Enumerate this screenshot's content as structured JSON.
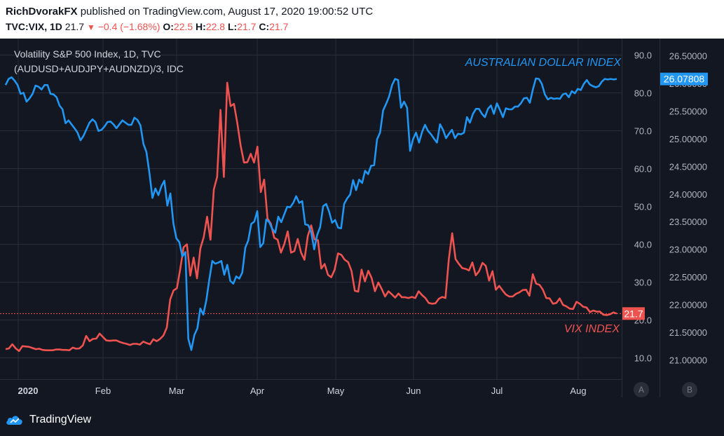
{
  "header": {
    "user": "RichDvorakFX",
    "published": "published on TradingView.com, August 17, 2020 19:00:52 UTC",
    "symbol": "TVC:VIX, 1D",
    "last": "21.7",
    "change": "−0.4 (−1.68%)",
    "open_label": "O:",
    "open": "22.5",
    "high_label": "H:",
    "high": "22.8",
    "low_label": "L:",
    "low": "21.7",
    "close_label": "C:",
    "close": "21.7"
  },
  "legend": {
    "line1": "Volatility S&P 500 Index, 1D, TVC",
    "line2": "(AUDUSD+AUDJPY+AUDNZD)/3, IDC"
  },
  "footer": {
    "brand": "TradingView"
  },
  "pane_buttons": {
    "a": "A",
    "b": "B"
  },
  "colors": {
    "vix": "#ef5350",
    "aud": "#2196f3",
    "background": "#131722",
    "grid": "#2a2e39",
    "axis_text": "#b2b5be"
  },
  "chart_data": {
    "type": "line",
    "x_axis_labels": [
      "2020",
      "Feb",
      "Mar",
      "Apr",
      "May",
      "Jun",
      "Jul",
      "Aug"
    ],
    "annotations": [
      "AUSTRALIAN DOLLAR INDEX",
      "VIX INDEX"
    ],
    "axes": {
      "left": {
        "ticks": [
          "90.0",
          "80.0",
          "70.0",
          "60.0",
          "50.0",
          "40.0",
          "30.0",
          "20.0",
          "10.0"
        ],
        "range": [
          5,
          95
        ]
      },
      "right": {
        "ticks": [
          "26.50000",
          "26.00000",
          "25.50000",
          "25.00000",
          "24.50000",
          "24.00000",
          "23.50000",
          "23.00000",
          "22.50000",
          "22.00000",
          "21.50000",
          "21.00000"
        ],
        "range": [
          20.6,
          26.85
        ]
      }
    },
    "last_value_labels": {
      "vix": "21.7",
      "aud": "26.07808"
    },
    "grid": true,
    "series": [
      {
        "key": "vix",
        "axis": "left",
        "values": [
          12.3,
          12.5,
          13.6,
          12.5,
          11.8,
          13.1,
          13.0,
          12.9,
          12.6,
          12.3,
          12.4,
          12.1,
          12.0,
          12.0,
          12.0,
          12.2,
          12.2,
          12.1,
          12.1,
          12.0,
          12.7,
          12.4,
          12.5,
          13.3,
          15.8,
          14.4,
          15.0,
          15.1,
          16.4,
          15.5,
          14.6,
          14.5,
          14.6,
          14.6,
          14.2,
          13.9,
          13.7,
          13.4,
          13.7,
          13.7,
          13.5,
          14.3,
          13.9,
          13.6,
          14.9,
          14.4,
          15.0,
          15.9,
          18.0,
          25.4,
          27.8,
          28.4,
          33.4,
          39.2,
          40.0,
          31.7,
          36.5,
          31.0,
          38.9,
          41.9,
          47.3,
          41.2,
          54.5,
          57.8,
          75.5,
          57.8,
          82.7,
          76.5,
          77.1,
          72.0,
          66.0,
          61.6,
          61.7,
          63.9,
          61.6,
          65.8,
          53.8,
          57.1,
          46.8,
          45.4,
          41.7,
          41.2,
          37.8,
          40.1,
          43.4,
          37.8,
          38.2,
          41.4,
          37.8,
          35.9,
          42.2,
          45.0,
          41.3,
          41.1,
          33.6,
          34.8,
          31.9,
          31.3,
          33.3,
          37.6,
          37.2,
          35.9,
          35.3,
          33.0,
          27.7,
          27.5,
          33.3,
          30.2,
          33.0,
          31.1,
          27.6,
          29.9,
          28.2,
          26.2,
          27.6,
          26.8,
          25.9,
          27.0,
          26.0,
          26.0,
          25.8,
          26.1,
          25.8,
          27.6,
          26.6,
          25.8,
          24.5,
          24.3,
          24.4,
          25.6,
          26.1,
          25.8,
          36.1,
          42.9,
          36.1,
          34.8,
          33.7,
          33.5,
          33.1,
          35.2,
          31.8,
          32.9,
          35.1,
          34.3,
          30.4,
          32.9,
          28.0,
          29.0,
          27.8,
          26.7,
          26.2,
          26.2,
          26.9,
          27.3,
          27.9,
          28.0,
          26.4,
          32.1,
          29.6,
          29.3,
          28.0,
          25.8,
          25.7,
          24.3,
          24.5,
          25.7,
          24.0,
          23.6,
          23.0,
          22.9,
          24.8,
          24.3,
          23.5,
          23.3,
          22.1,
          22.5,
          22.2,
          22.2,
          21.4,
          21.3,
          21.5,
          22.0,
          21.7
        ]
      },
      {
        "key": "aud",
        "axis": "right",
        "values": [
          25.97,
          26.08,
          26.11,
          26.05,
          25.97,
          25.81,
          25.83,
          25.67,
          25.73,
          25.81,
          25.96,
          25.94,
          25.89,
          25.97,
          25.97,
          25.81,
          25.8,
          25.75,
          25.6,
          25.53,
          25.28,
          25.33,
          25.26,
          25.19,
          25.11,
          24.97,
          25.05,
          25.17,
          25.29,
          25.35,
          25.3,
          25.14,
          25.16,
          25.22,
          25.3,
          25.31,
          25.26,
          25.19,
          25.26,
          25.33,
          25.29,
          25.25,
          25.25,
          25.38,
          25.34,
          25.24,
          24.91,
          24.76,
          24.38,
          23.93,
          24.1,
          23.98,
          24.14,
          24.24,
          23.79,
          24.01,
          23.47,
          23.2,
          23.13,
          22.87,
          22.95,
          21.38,
          21.18,
          21.45,
          21.57,
          21.93,
          21.82,
          22.08,
          22.46,
          22.79,
          22.74,
          22.76,
          22.79,
          22.54,
          22.72,
          22.43,
          22.38,
          22.51,
          22.47,
          22.58,
          23.03,
          23.16,
          23.46,
          23.5,
          23.69,
          23.04,
          23.11,
          23.54,
          23.49,
          23.37,
          23.3,
          23.59,
          23.49,
          23.63,
          23.77,
          23.76,
          23.84,
          23.96,
          23.84,
          23.87,
          23.45,
          23.44,
          23.31,
          23.0,
          23.26,
          23.4,
          23.78,
          23.82,
          23.68,
          23.48,
          23.53,
          23.39,
          23.38,
          23.82,
          23.92,
          23.99,
          24.25,
          24.07,
          24.26,
          24.2,
          24.42,
          24.36,
          24.51,
          24.52,
          24.99,
          25.11,
          25.51,
          25.63,
          25.76,
          25.97,
          26.08,
          26.06,
          25.56,
          25.67,
          25.56,
          24.78,
          24.99,
          25.11,
          24.93,
          25.12,
          25.25,
          25.14,
          25.08,
          25.0,
          24.93,
          25.26,
          25.16,
          25.01,
          25.09,
          25.16,
          25.01,
          25.09,
          25.08,
          25.11,
          25.39,
          25.29,
          25.45,
          25.54,
          25.54,
          25.45,
          25.39,
          25.54,
          25.6,
          25.45,
          25.64,
          25.52,
          25.39,
          25.55,
          25.53,
          25.53,
          25.58,
          25.58,
          25.64,
          25.73,
          25.74,
          25.65,
          25.89,
          26.09,
          26.08,
          25.99,
          25.8,
          25.71,
          25.74,
          25.72,
          25.73,
          25.72,
          25.8,
          25.82,
          25.75,
          25.86,
          25.82,
          25.9,
          25.88,
          25.99,
          26.06,
          25.98,
          25.95,
          25.93,
          25.95,
          26.03,
          26.08,
          26.07,
          26.08,
          26.07,
          26.08
        ]
      }
    ]
  }
}
